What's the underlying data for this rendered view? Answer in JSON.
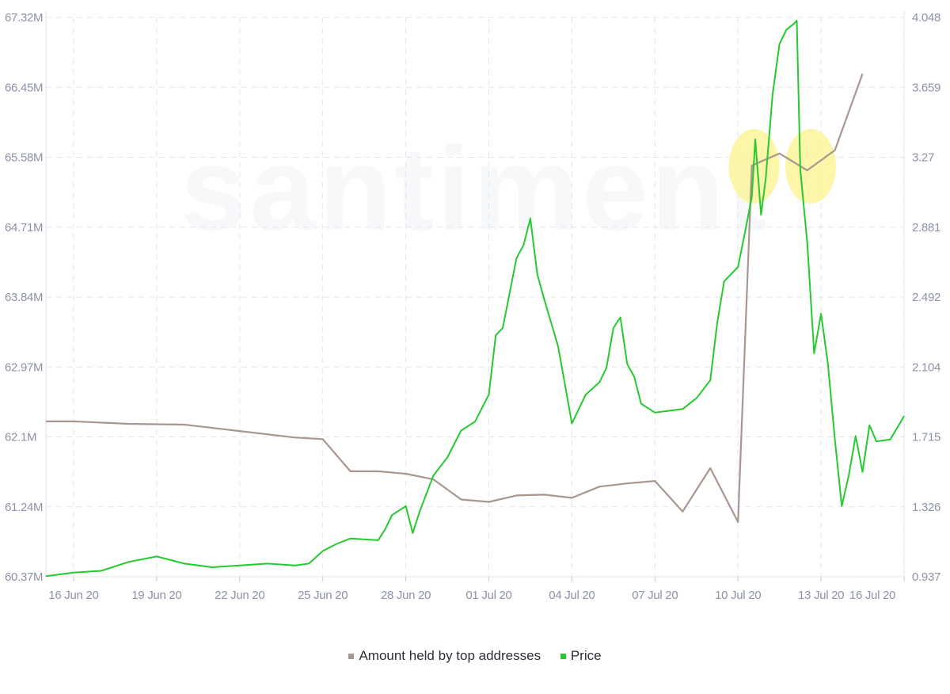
{
  "chart_data": {
    "type": "line",
    "watermark": "santiment",
    "x_ticks": [
      "16 Jun 20",
      "19 Jun 20",
      "22 Jun 20",
      "25 Jun 20",
      "28 Jun 20",
      "01 Jul 20",
      "04 Jul 20",
      "07 Jul 20",
      "10 Jul 20",
      "13 Jul 20",
      "16 Jul 20"
    ],
    "x_range": [
      "2020-06-15",
      "2020-07-16"
    ],
    "y_left": {
      "ticks": [
        "67.32M",
        "66.45M",
        "65.58M",
        "64.71M",
        "63.84M",
        "62.97M",
        "62.1M",
        "61.24M",
        "60.37M"
      ],
      "range": [
        60.37,
        67.32
      ],
      "unit": "M"
    },
    "y_right": {
      "ticks": [
        "4.048",
        "3.659",
        "3.27",
        "2.881",
        "2.492",
        "2.104",
        "1.715",
        "1.326",
        "0.937"
      ],
      "range": [
        0.937,
        4.048
      ]
    },
    "grid": true,
    "legend_position": "bottom-center",
    "series": [
      {
        "name": "Amount held by top addresses",
        "axis": "left",
        "color": "#a8968f",
        "points": [
          [
            "2020-06-15",
            62.3
          ],
          [
            "2020-06-16",
            62.3
          ],
          [
            "2020-06-18",
            62.27
          ],
          [
            "2020-06-20",
            62.26
          ],
          [
            "2020-06-22",
            62.18
          ],
          [
            "2020-06-24",
            62.1
          ],
          [
            "2020-06-25",
            62.08
          ],
          [
            "2020-06-26",
            61.68
          ],
          [
            "2020-06-27",
            61.68
          ],
          [
            "2020-06-28",
            61.65
          ],
          [
            "2020-06-29",
            61.58
          ],
          [
            "2020-06-30",
            61.33
          ],
          [
            "2020-07-01",
            61.3
          ],
          [
            "2020-07-02",
            61.38
          ],
          [
            "2020-07-03",
            61.39
          ],
          [
            "2020-07-04",
            61.35
          ],
          [
            "2020-07-05",
            61.49
          ],
          [
            "2020-07-06",
            61.53
          ],
          [
            "2020-07-07",
            61.56
          ],
          [
            "2020-07-08",
            61.18
          ],
          [
            "2020-07-09",
            61.72
          ],
          [
            "2020-07-10",
            61.05
          ],
          [
            "2020-07-10T12:00",
            65.48
          ],
          [
            "2020-07-11T12:00",
            65.63
          ],
          [
            "2020-07-12T12:00",
            65.42
          ],
          [
            "2020-07-13T12:00",
            65.67
          ],
          [
            "2020-07-14T12:00",
            66.62
          ]
        ]
      },
      {
        "name": "Price",
        "axis": "right",
        "color": "#26c92f",
        "points": [
          [
            "2020-06-15",
            0.94
          ],
          [
            "2020-06-16",
            0.96
          ],
          [
            "2020-06-17",
            0.97
          ],
          [
            "2020-06-18",
            1.02
          ],
          [
            "2020-06-19",
            1.05
          ],
          [
            "2020-06-20",
            1.01
          ],
          [
            "2020-06-21",
            0.99
          ],
          [
            "2020-06-22",
            1.0
          ],
          [
            "2020-06-23",
            1.01
          ],
          [
            "2020-06-24",
            1.0
          ],
          [
            "2020-06-24T12:00",
            1.01
          ],
          [
            "2020-06-25",
            1.08
          ],
          [
            "2020-06-25T12:00",
            1.12
          ],
          [
            "2020-06-26",
            1.15
          ],
          [
            "2020-06-27",
            1.14
          ],
          [
            "2020-06-27T06:00",
            1.2
          ],
          [
            "2020-06-27T12:00",
            1.28
          ],
          [
            "2020-06-28",
            1.33
          ],
          [
            "2020-06-28T06:00",
            1.18
          ],
          [
            "2020-06-28T12:00",
            1.3
          ],
          [
            "2020-06-29",
            1.5
          ],
          [
            "2020-06-29T12:00",
            1.6
          ],
          [
            "2020-06-30",
            1.75
          ],
          [
            "2020-06-30T12:00",
            1.8
          ],
          [
            "2020-07-01",
            1.95
          ],
          [
            "2020-07-01T06:00",
            2.28
          ],
          [
            "2020-07-01T12:00",
            2.32
          ],
          [
            "2020-07-02",
            2.71
          ],
          [
            "2020-07-02T06:00",
            2.78
          ],
          [
            "2020-07-02T12:00",
            2.93
          ],
          [
            "2020-07-02T18:00",
            2.62
          ],
          [
            "2020-07-03",
            2.48
          ],
          [
            "2020-07-03T12:00",
            2.22
          ],
          [
            "2020-07-04",
            1.79
          ],
          [
            "2020-07-04T12:00",
            1.95
          ],
          [
            "2020-07-05",
            2.02
          ],
          [
            "2020-07-05T06:00",
            2.1
          ],
          [
            "2020-07-05T12:00",
            2.32
          ],
          [
            "2020-07-05T18:00",
            2.38
          ],
          [
            "2020-07-06",
            2.12
          ],
          [
            "2020-07-06T06:00",
            2.05
          ],
          [
            "2020-07-06T12:00",
            1.9
          ],
          [
            "2020-07-07",
            1.85
          ],
          [
            "2020-07-07T12:00",
            1.86
          ],
          [
            "2020-07-08",
            1.87
          ],
          [
            "2020-07-08T12:00",
            1.93
          ],
          [
            "2020-07-09",
            2.03
          ],
          [
            "2020-07-09T06:00",
            2.35
          ],
          [
            "2020-07-09T12:00",
            2.58
          ],
          [
            "2020-07-10",
            2.66
          ],
          [
            "2020-07-10T06:00",
            2.85
          ],
          [
            "2020-07-10T12:00",
            3.05
          ],
          [
            "2020-07-10T15:00",
            3.37
          ],
          [
            "2020-07-10T20:00",
            2.95
          ],
          [
            "2020-07-11",
            3.15
          ],
          [
            "2020-07-11T06:00",
            3.62
          ],
          [
            "2020-07-11T12:00",
            3.9
          ],
          [
            "2020-07-11T18:00",
            3.98
          ],
          [
            "2020-07-12",
            4.01
          ],
          [
            "2020-07-12T03:00",
            4.03
          ],
          [
            "2020-07-12T06:00",
            3.2
          ],
          [
            "2020-07-12T12:00",
            2.8
          ],
          [
            "2020-07-12T18:00",
            2.18
          ],
          [
            "2020-07-13",
            2.4
          ],
          [
            "2020-07-13T06:00",
            2.12
          ],
          [
            "2020-07-13T12:00",
            1.7
          ],
          [
            "2020-07-13T18:00",
            1.33
          ],
          [
            "2020-07-14",
            1.5
          ],
          [
            "2020-07-14T06:00",
            1.72
          ],
          [
            "2020-07-14T12:00",
            1.52
          ],
          [
            "2020-07-14T18:00",
            1.78
          ],
          [
            "2020-07-15",
            1.69
          ],
          [
            "2020-07-15T12:00",
            1.7
          ],
          [
            "2020-07-16",
            1.83
          ]
        ]
      }
    ],
    "annotations": [
      {
        "type": "highlight-circle",
        "x": "2020-07-10T14:00",
        "y_axis": "right",
        "y": 3.22,
        "color": "#fbf59a"
      },
      {
        "type": "highlight-circle",
        "x": "2020-07-12T15:00",
        "y_axis": "right",
        "y": 3.22,
        "color": "#fbf59a"
      }
    ]
  }
}
